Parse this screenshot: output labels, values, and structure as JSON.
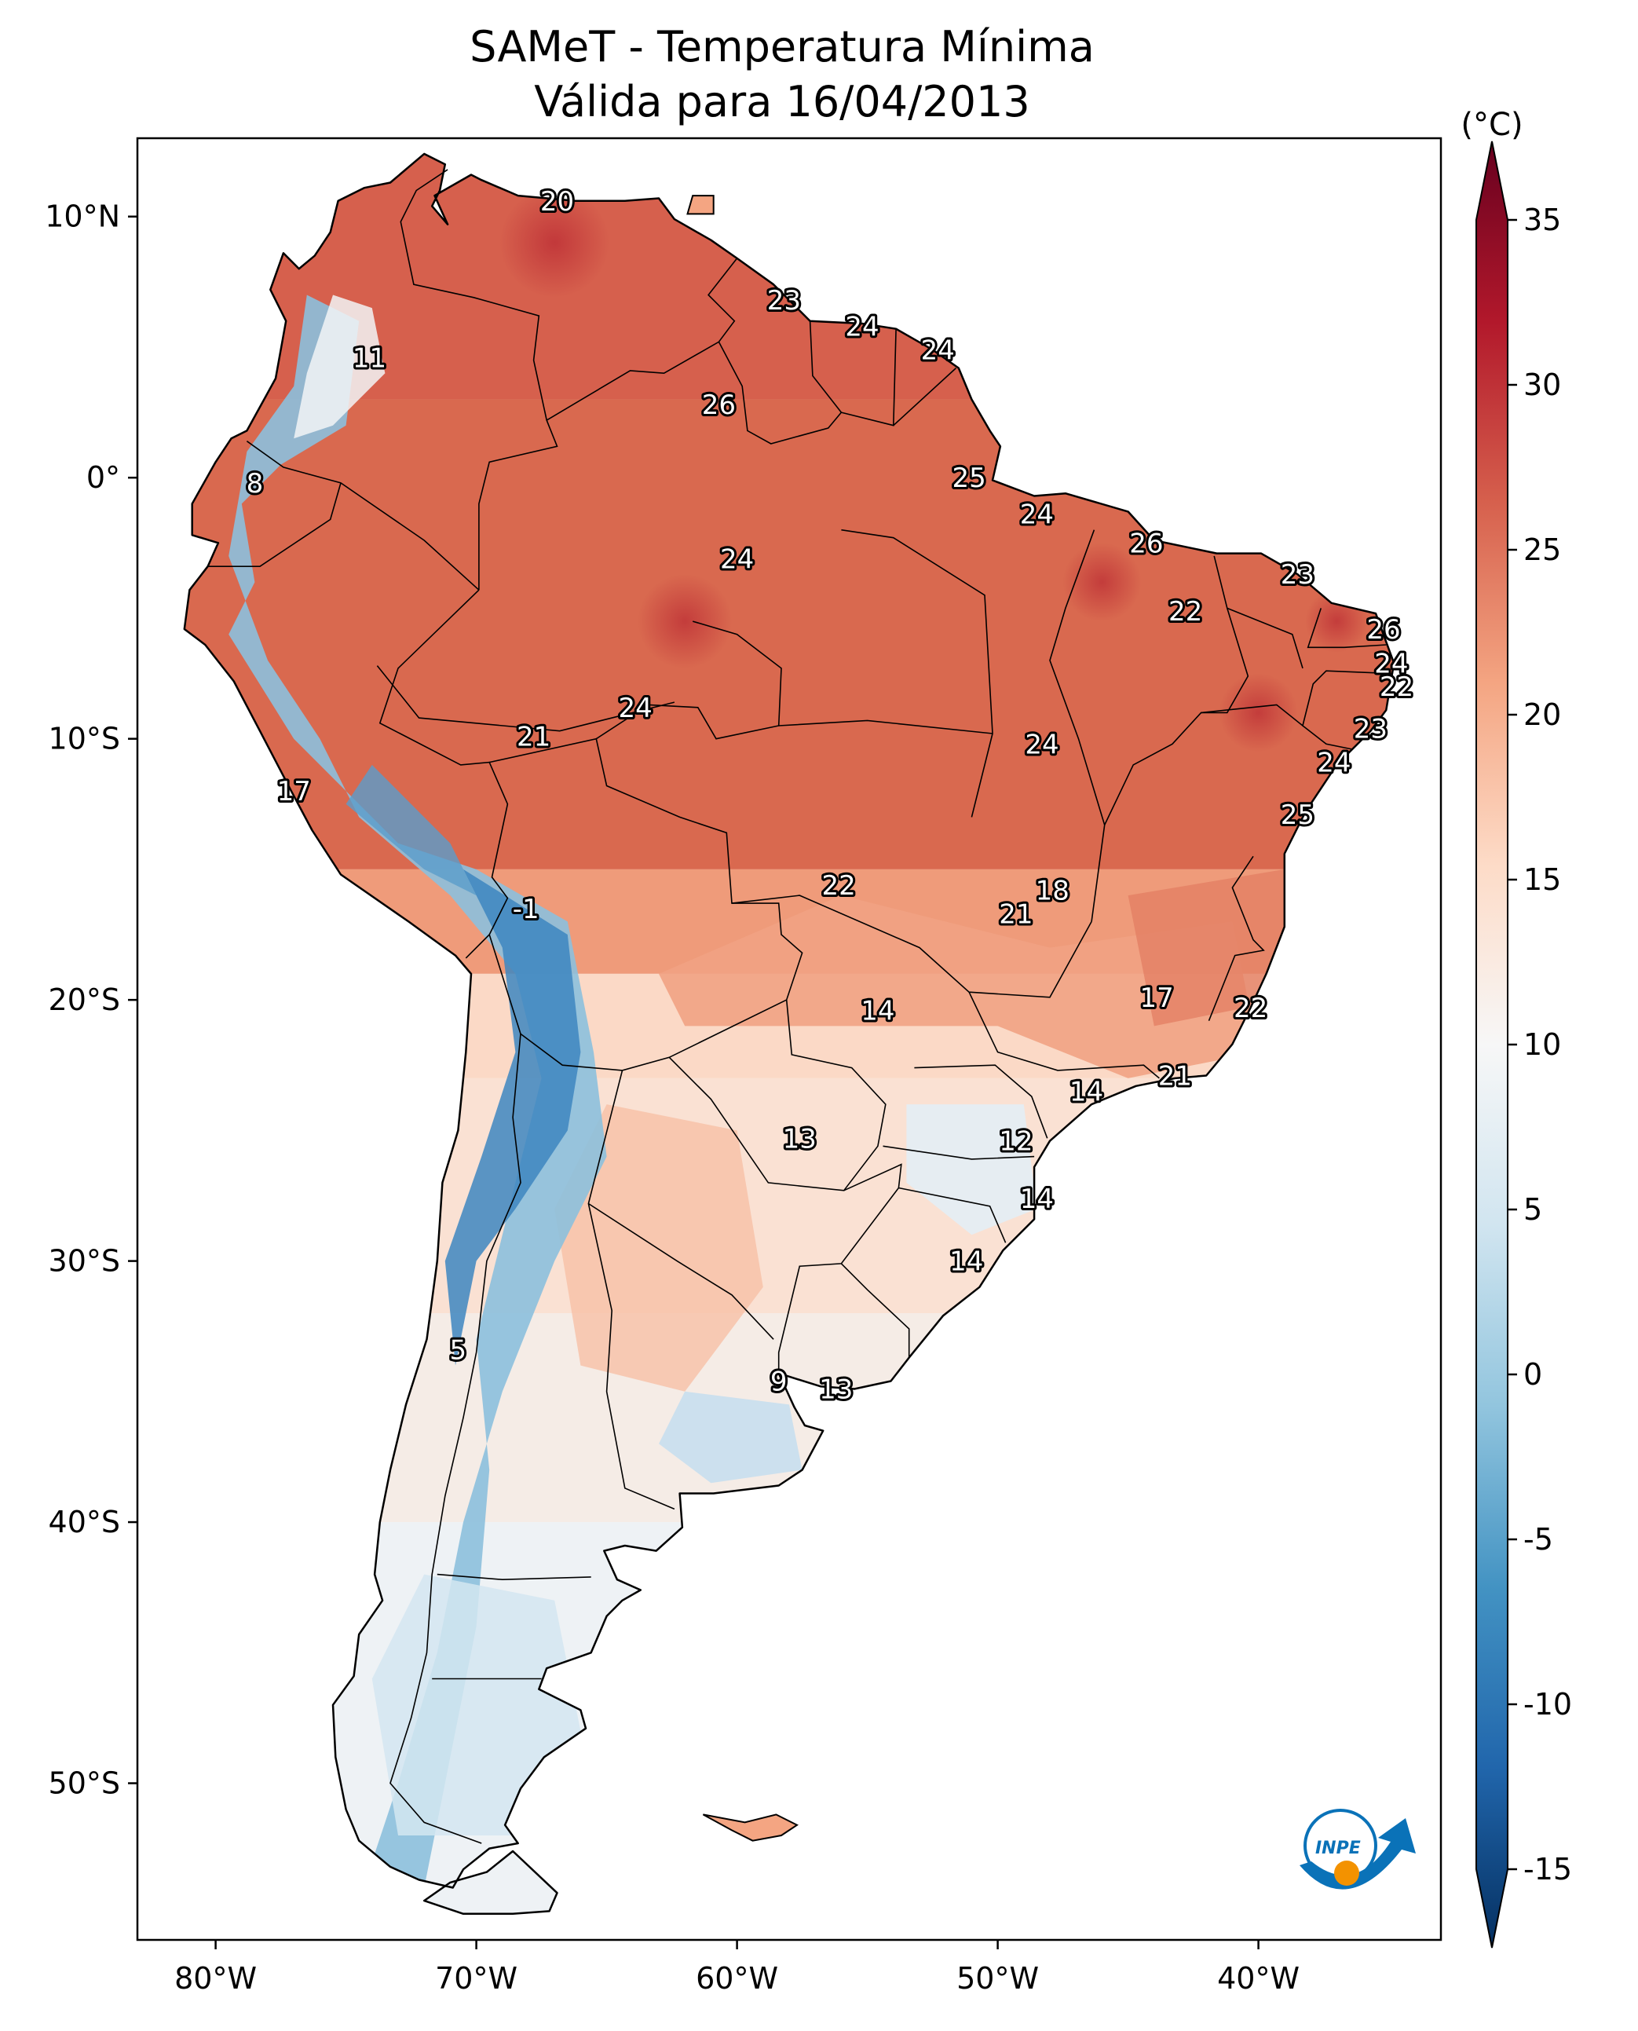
{
  "title": {
    "line1": "SAMeT - Temperatura Mínima",
    "line2": "Válida para 16/04/2013"
  },
  "map": {
    "lon_range": [
      -83,
      -33
    ],
    "lat_range": [
      -56,
      13
    ],
    "lon_ticks": [
      {
        "value": -80,
        "label": "80°W"
      },
      {
        "value": -70,
        "label": "70°W"
      },
      {
        "value": -60,
        "label": "60°W"
      },
      {
        "value": -50,
        "label": "50°W"
      },
      {
        "value": -40,
        "label": "40°W"
      }
    ],
    "lat_ticks": [
      {
        "value": 10,
        "label": "10°N"
      },
      {
        "value": 0,
        "label": "0°"
      },
      {
        "value": -10,
        "label": "10°S"
      },
      {
        "value": -20,
        "label": "20°S"
      },
      {
        "value": -30,
        "label": "30°S"
      },
      {
        "value": -40,
        "label": "40°S"
      },
      {
        "value": -50,
        "label": "50°S"
      }
    ],
    "annotations": [
      {
        "lon": -66.9,
        "lat": 10.6,
        "text": "20"
      },
      {
        "lon": -74.1,
        "lat": 4.6,
        "text": "11"
      },
      {
        "lon": -78.5,
        "lat": -0.2,
        "text": "8"
      },
      {
        "lon": -58.2,
        "lat": 6.8,
        "text": "23"
      },
      {
        "lon": -55.2,
        "lat": 5.8,
        "text": "24"
      },
      {
        "lon": -52.3,
        "lat": 4.9,
        "text": "24"
      },
      {
        "lon": -60.7,
        "lat": 2.8,
        "text": "26"
      },
      {
        "lon": -51.1,
        "lat": 0.0,
        "text": "25"
      },
      {
        "lon": -48.5,
        "lat": -1.4,
        "text": "24"
      },
      {
        "lon": -60.0,
        "lat": -3.1,
        "text": "24"
      },
      {
        "lon": -44.3,
        "lat": -2.5,
        "text": "26"
      },
      {
        "lon": -38.5,
        "lat": -3.7,
        "text": "23"
      },
      {
        "lon": -42.8,
        "lat": -5.1,
        "text": "22"
      },
      {
        "lon": -35.2,
        "lat": -5.8,
        "text": "26"
      },
      {
        "lon": -34.9,
        "lat": -7.1,
        "text": "24"
      },
      {
        "lon": -34.7,
        "lat": -8.0,
        "text": "22"
      },
      {
        "lon": -35.7,
        "lat": -9.6,
        "text": "23"
      },
      {
        "lon": -37.1,
        "lat": -10.9,
        "text": "24"
      },
      {
        "lon": -63.9,
        "lat": -8.8,
        "text": "24"
      },
      {
        "lon": -67.8,
        "lat": -9.9,
        "text": "21"
      },
      {
        "lon": -48.3,
        "lat": -10.2,
        "text": "24"
      },
      {
        "lon": -38.5,
        "lat": -12.9,
        "text": "25"
      },
      {
        "lon": -77.0,
        "lat": -12.0,
        "text": "17"
      },
      {
        "lon": -56.1,
        "lat": -15.6,
        "text": "22"
      },
      {
        "lon": -47.9,
        "lat": -15.8,
        "text": "18"
      },
      {
        "lon": -49.3,
        "lat": -16.7,
        "text": "21"
      },
      {
        "lon": -68.1,
        "lat": -16.5,
        "text": "-1"
      },
      {
        "lon": -54.6,
        "lat": -20.4,
        "text": "14"
      },
      {
        "lon": -43.9,
        "lat": -19.9,
        "text": "17"
      },
      {
        "lon": -40.3,
        "lat": -20.3,
        "text": "22"
      },
      {
        "lon": -46.6,
        "lat": -23.5,
        "text": "14"
      },
      {
        "lon": -43.2,
        "lat": -22.9,
        "text": "21"
      },
      {
        "lon": -57.6,
        "lat": -25.3,
        "text": "13"
      },
      {
        "lon": -49.3,
        "lat": -25.4,
        "text": "12"
      },
      {
        "lon": -48.5,
        "lat": -27.6,
        "text": "14"
      },
      {
        "lon": -51.2,
        "lat": -30.0,
        "text": "14"
      },
      {
        "lon": -70.7,
        "lat": -33.4,
        "text": "5"
      },
      {
        "lon": -58.4,
        "lat": -34.6,
        "text": "9"
      },
      {
        "lon": -56.2,
        "lat": -34.9,
        "text": "13"
      }
    ]
  },
  "colorbar": {
    "unit": "(°C)",
    "min": -15,
    "max": 35,
    "ticks": [
      "35",
      "30",
      "25",
      "20",
      "15",
      "10",
      "5",
      "0",
      "-5",
      "-10",
      "-15"
    ],
    "colors": [
      "#053061",
      "#2166ac",
      "#4393c3",
      "#92c5de",
      "#d1e5f0",
      "#f7f7f7",
      "#fddbc7",
      "#f4a582",
      "#d6604d",
      "#b2182b",
      "#67001f"
    ]
  },
  "logo": {
    "text": "INPE",
    "colors": [
      "#0a72b8",
      "#f39200"
    ]
  }
}
